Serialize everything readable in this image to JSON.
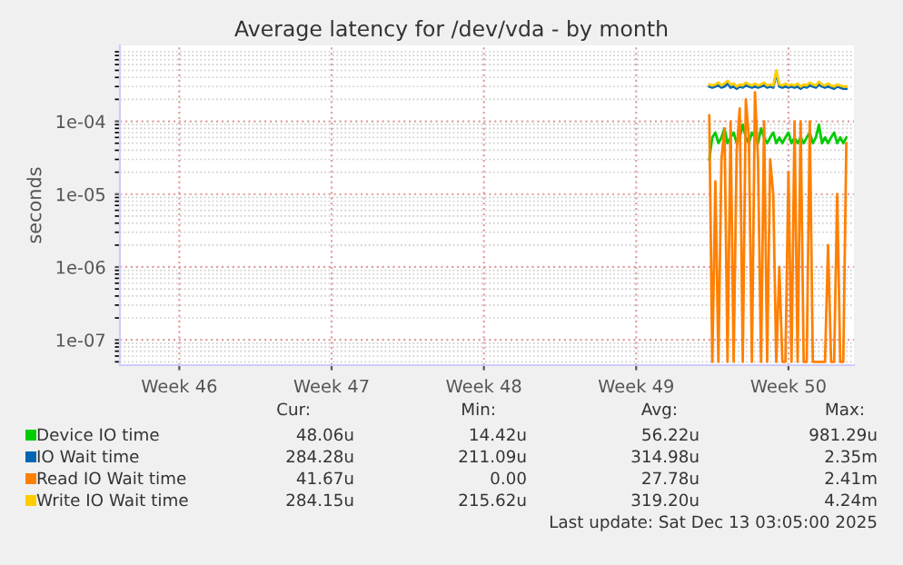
{
  "chart_data": {
    "type": "line",
    "title": "Average latency for /dev/vda - by month",
    "ylabel": "seconds",
    "log": "y",
    "grid": true,
    "legend": "bottom",
    "marker": "none",
    "line_style": "solid",
    "ylim": [
      4.5e-08,
      0.0011
    ],
    "yticks": [
      {
        "value": 1e-07,
        "label": "1e-07"
      },
      {
        "value": 1e-06,
        "label": "1e-06"
      },
      {
        "value": 1e-05,
        "label": "1e-05"
      },
      {
        "value": 0.0001,
        "label": "1e-04"
      }
    ],
    "categories": [
      null,
      null,
      null,
      null,
      null,
      null,
      null,
      null,
      null,
      null,
      null,
      null,
      null,
      null,
      null,
      null,
      null,
      null,
      null,
      "Week 46",
      null,
      null,
      null,
      null,
      null,
      null,
      null,
      null,
      null,
      null,
      null,
      null,
      null,
      null,
      null,
      null,
      null,
      null,
      null,
      null,
      null,
      null,
      null,
      null,
      null,
      null,
      null,
      null,
      null,
      null,
      null,
      null,
      null,
      null,
      null,
      null,
      null,
      null,
      null,
      null,
      null,
      null,
      null,
      null,
      null,
      null,
      null,
      null,
      null,
      "Week 47",
      null,
      null,
      null,
      null,
      null,
      null,
      null,
      null,
      null,
      null,
      null,
      null,
      null,
      null,
      null,
      null,
      null,
      null,
      null,
      null,
      null,
      null,
      null,
      null,
      null,
      null,
      null,
      null,
      null,
      null,
      null,
      null,
      null,
      null,
      null,
      null,
      null,
      null,
      null,
      null,
      null,
      null,
      null,
      null,
      null,
      null,
      null,
      null,
      null,
      "Week 48",
      null,
      null,
      null,
      null,
      null,
      null,
      null,
      null,
      null,
      null,
      null,
      null,
      null,
      null,
      null,
      null,
      null,
      null,
      null,
      null,
      null,
      null,
      null,
      null,
      null,
      null,
      null,
      null,
      null,
      null,
      null,
      null,
      null,
      null,
      null,
      null,
      null,
      null,
      null,
      null,
      null,
      null,
      null,
      null,
      null,
      null,
      null,
      null,
      null,
      "Week 49",
      null,
      null,
      null,
      null,
      null,
      null,
      null,
      null,
      null,
      null,
      null,
      null,
      null,
      null,
      null,
      null,
      null,
      null,
      null,
      null,
      null,
      null,
      null,
      null,
      null,
      null,
      null,
      null,
      null,
      null,
      null,
      null,
      null,
      null,
      null,
      null,
      null,
      null,
      null,
      null,
      null,
      null,
      null,
      null,
      null,
      null,
      null,
      null,
      null,
      "Week 50",
      null,
      null,
      null,
      null,
      null,
      null,
      null,
      null,
      null,
      null,
      null,
      null,
      null,
      null,
      null,
      null,
      null,
      null,
      null,
      null,
      null
    ],
    "series": [
      {
        "name": "Device IO time",
        "color": "#00cc00",
        "values": [
          null,
          null,
          null,
          null,
          null,
          null,
          null,
          null,
          null,
          null,
          null,
          null,
          null,
          null,
          null,
          null,
          null,
          null,
          null,
          null,
          null,
          null,
          null,
          null,
          null,
          null,
          null,
          null,
          null,
          null,
          null,
          null,
          null,
          null,
          null,
          null,
          null,
          null,
          null,
          null,
          null,
          null,
          null,
          null,
          null,
          null,
          null,
          null,
          null,
          null,
          null,
          null,
          null,
          null,
          null,
          null,
          null,
          null,
          null,
          null,
          null,
          null,
          null,
          null,
          null,
          null,
          null,
          null,
          null,
          null,
          null,
          null,
          null,
          null,
          null,
          null,
          null,
          null,
          null,
          null,
          null,
          null,
          null,
          null,
          null,
          null,
          null,
          null,
          null,
          null,
          null,
          null,
          null,
          null,
          null,
          null,
          null,
          null,
          null,
          null,
          null,
          null,
          null,
          null,
          null,
          null,
          null,
          null,
          null,
          null,
          null,
          null,
          null,
          null,
          null,
          null,
          null,
          null,
          null,
          null,
          null,
          null,
          null,
          null,
          null,
          null,
          null,
          null,
          null,
          null,
          null,
          null,
          null,
          null,
          null,
          null,
          null,
          null,
          null,
          null,
          null,
          null,
          null,
          null,
          null,
          null,
          null,
          null,
          null,
          null,
          null,
          null,
          null,
          null,
          null,
          null,
          null,
          null,
          null,
          null,
          null,
          null,
          null,
          null,
          null,
          null,
          null,
          null,
          null,
          null,
          null,
          null,
          null,
          null,
          null,
          null,
          null,
          null,
          null,
          null,
          null,
          null,
          null,
          null,
          null,
          null,
          null,
          null,
          null,
          null,
          null,
          null,
          null,
          3e-05,
          6e-05,
          7e-05,
          5e-05,
          6e-05,
          8e-05,
          5e-05,
          6e-05,
          7e-05,
          5e-05,
          6e-05,
          9e-05,
          6e-05,
          5e-05,
          7e-05,
          6e-05,
          5e-05,
          8e-05,
          6e-05,
          5e-05,
          6e-05,
          7e-05,
          5e-05,
          6e-05,
          5e-05,
          6e-05,
          7e-05,
          5e-05,
          6e-05,
          5e-05,
          6e-05,
          5e-05,
          6e-05,
          7e-05,
          5e-05,
          6e-05,
          9e-05,
          5e-05,
          6e-05,
          5e-05,
          6e-05,
          7e-05,
          5e-05,
          6e-05,
          5e-05,
          6e-05,
          null,
          null
        ]
      },
      {
        "name": "IO Wait time",
        "color": "#0066b3",
        "values": [
          null,
          null,
          null,
          null,
          null,
          null,
          null,
          null,
          null,
          null,
          null,
          null,
          null,
          null,
          null,
          null,
          null,
          null,
          null,
          null,
          null,
          null,
          null,
          null,
          null,
          null,
          null,
          null,
          null,
          null,
          null,
          null,
          null,
          null,
          null,
          null,
          null,
          null,
          null,
          null,
          null,
          null,
          null,
          null,
          null,
          null,
          null,
          null,
          null,
          null,
          null,
          null,
          null,
          null,
          null,
          null,
          null,
          null,
          null,
          null,
          null,
          null,
          null,
          null,
          null,
          null,
          null,
          null,
          null,
          null,
          null,
          null,
          null,
          null,
          null,
          null,
          null,
          null,
          null,
          null,
          null,
          null,
          null,
          null,
          null,
          null,
          null,
          null,
          null,
          null,
          null,
          null,
          null,
          null,
          null,
          null,
          null,
          null,
          null,
          null,
          null,
          null,
          null,
          null,
          null,
          null,
          null,
          null,
          null,
          null,
          null,
          null,
          null,
          null,
          null,
          null,
          null,
          null,
          null,
          null,
          null,
          null,
          null,
          null,
          null,
          null,
          null,
          null,
          null,
          null,
          null,
          null,
          null,
          null,
          null,
          null,
          null,
          null,
          null,
          null,
          null,
          null,
          null,
          null,
          null,
          null,
          null,
          null,
          null,
          null,
          null,
          null,
          null,
          null,
          null,
          null,
          null,
          null,
          null,
          null,
          null,
          null,
          null,
          null,
          null,
          null,
          null,
          null,
          null,
          null,
          null,
          null,
          null,
          null,
          null,
          null,
          null,
          null,
          null,
          null,
          null,
          null,
          null,
          null,
          null,
          null,
          null,
          null,
          null,
          null,
          null,
          null,
          null,
          0.0003,
          0.00029,
          0.0003,
          0.00031,
          0.00029,
          0.0003,
          0.00033,
          0.00029,
          0.0003,
          0.00028,
          0.0003,
          0.00029,
          0.00031,
          0.0003,
          0.00029,
          0.0003,
          0.00029,
          0.0003,
          0.00031,
          0.00029,
          0.0003,
          0.00029,
          0.00046,
          0.0003,
          0.00029,
          0.0003,
          0.00029,
          0.0003,
          0.00029,
          0.0003,
          0.00028,
          0.0003,
          0.00029,
          0.00031,
          0.0003,
          0.00029,
          0.00032,
          0.0003,
          0.00029,
          0.0003,
          0.00029,
          0.00028,
          0.0003,
          0.00029,
          0.00028,
          0.00028,
          null,
          null
        ]
      },
      {
        "name": "Read IO Wait time",
        "color": "#ff8000",
        "values": [
          null,
          null,
          null,
          null,
          null,
          null,
          null,
          null,
          null,
          null,
          null,
          null,
          null,
          null,
          null,
          null,
          null,
          null,
          null,
          null,
          null,
          null,
          null,
          null,
          null,
          null,
          null,
          null,
          null,
          null,
          null,
          null,
          null,
          null,
          null,
          null,
          null,
          null,
          null,
          null,
          null,
          null,
          null,
          null,
          null,
          null,
          null,
          null,
          null,
          null,
          null,
          null,
          null,
          null,
          null,
          null,
          null,
          null,
          null,
          null,
          null,
          null,
          null,
          null,
          null,
          null,
          null,
          null,
          null,
          null,
          null,
          null,
          null,
          null,
          null,
          null,
          null,
          null,
          null,
          null,
          null,
          null,
          null,
          null,
          null,
          null,
          null,
          null,
          null,
          null,
          null,
          null,
          null,
          null,
          null,
          null,
          null,
          null,
          null,
          null,
          null,
          null,
          null,
          null,
          null,
          null,
          null,
          null,
          null,
          null,
          null,
          null,
          null,
          null,
          null,
          null,
          null,
          null,
          null,
          null,
          null,
          null,
          null,
          null,
          null,
          null,
          null,
          null,
          null,
          null,
          null,
          null,
          null,
          null,
          null,
          null,
          null,
          null,
          null,
          null,
          null,
          null,
          null,
          null,
          null,
          null,
          null,
          null,
          null,
          null,
          null,
          null,
          null,
          null,
          null,
          null,
          null,
          null,
          null,
          null,
          null,
          null,
          null,
          null,
          null,
          null,
          null,
          null,
          null,
          null,
          null,
          null,
          null,
          null,
          null,
          null,
          null,
          null,
          null,
          null,
          null,
          null,
          null,
          null,
          null,
          null,
          null,
          null,
          null,
          null,
          null,
          null,
          null,
          0.00012,
          5e-08,
          1.5e-05,
          5e-08,
          3e-05,
          8e-05,
          5e-08,
          0.0001,
          5e-08,
          4e-05,
          0.00015,
          5e-08,
          0.0002,
          6e-05,
          5e-08,
          0.00025,
          3e-05,
          5e-08,
          0.0001,
          5e-08,
          3e-05,
          1e-05,
          5e-08,
          1e-06,
          5e-08,
          5e-08,
          2e-05,
          5e-08,
          0.0001,
          5e-08,
          0.0001,
          5e-08,
          5e-08,
          0.0001,
          5e-08,
          5e-08,
          5e-08,
          5e-08,
          5e-08,
          2e-06,
          5e-08,
          5e-08,
          1e-05,
          5e-08,
          5e-08,
          5e-05,
          null,
          null
        ]
      },
      {
        "name": "Write IO Wait time",
        "color": "#ffcc00",
        "values": [
          null,
          null,
          null,
          null,
          null,
          null,
          null,
          null,
          null,
          null,
          null,
          null,
          null,
          null,
          null,
          null,
          null,
          null,
          null,
          null,
          null,
          null,
          null,
          null,
          null,
          null,
          null,
          null,
          null,
          null,
          null,
          null,
          null,
          null,
          null,
          null,
          null,
          null,
          null,
          null,
          null,
          null,
          null,
          null,
          null,
          null,
          null,
          null,
          null,
          null,
          null,
          null,
          null,
          null,
          null,
          null,
          null,
          null,
          null,
          null,
          null,
          null,
          null,
          null,
          null,
          null,
          null,
          null,
          null,
          null,
          null,
          null,
          null,
          null,
          null,
          null,
          null,
          null,
          null,
          null,
          null,
          null,
          null,
          null,
          null,
          null,
          null,
          null,
          null,
          null,
          null,
          null,
          null,
          null,
          null,
          null,
          null,
          null,
          null,
          null,
          null,
          null,
          null,
          null,
          null,
          null,
          null,
          null,
          null,
          null,
          null,
          null,
          null,
          null,
          null,
          null,
          null,
          null,
          null,
          null,
          null,
          null,
          null,
          null,
          null,
          null,
          null,
          null,
          null,
          null,
          null,
          null,
          null,
          null,
          null,
          null,
          null,
          null,
          null,
          null,
          null,
          null,
          null,
          null,
          null,
          null,
          null,
          null,
          null,
          null,
          null,
          null,
          null,
          null,
          null,
          null,
          null,
          null,
          null,
          null,
          null,
          null,
          null,
          null,
          null,
          null,
          null,
          null,
          null,
          null,
          null,
          null,
          null,
          null,
          null,
          null,
          null,
          null,
          null,
          null,
          null,
          null,
          null,
          null,
          null,
          null,
          null,
          null,
          null,
          null,
          null,
          null,
          null,
          0.00032,
          0.00031,
          0.00032,
          0.00034,
          0.00031,
          0.00033,
          0.00036,
          0.00032,
          0.00033,
          0.0003,
          0.00032,
          0.00031,
          0.00034,
          0.00032,
          0.00031,
          0.00033,
          0.00031,
          0.00032,
          0.00034,
          0.00031,
          0.00032,
          0.00031,
          0.0005,
          0.00032,
          0.00031,
          0.00033,
          0.00031,
          0.00032,
          0.00031,
          0.00033,
          0.0003,
          0.00032,
          0.00031,
          0.00034,
          0.00032,
          0.00031,
          0.00035,
          0.00032,
          0.00031,
          0.00033,
          0.00031,
          0.0003,
          0.00032,
          0.00031,
          0.0003,
          0.0003,
          null,
          null
        ]
      }
    ],
    "annotations": [
      "Cur:",
      "Min:",
      "Avg:",
      "Max:",
      "48.06u",
      "14.42u",
      "56.22u",
      "981.29u",
      "284.28u",
      "211.09u",
      "314.98u",
      "2.35m",
      "41.67u",
      "0.00",
      "27.78u",
      "2.41m",
      "284.15u",
      "215.62u",
      "319.20u",
      "4.24m",
      "Last update: Sat Dec 13 03:05:00 2025"
    ]
  }
}
